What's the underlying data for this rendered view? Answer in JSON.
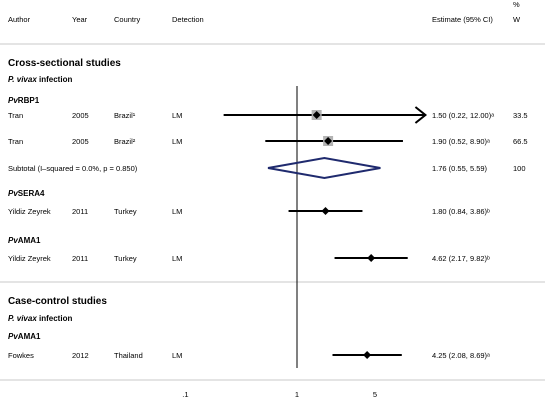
{
  "header": {
    "author": "Author",
    "year": "Year",
    "country": "Country",
    "detection": "Detection",
    "estimate": "Estimate (95% CI)",
    "weight_pct": "%",
    "weight": "W"
  },
  "sections": [
    {
      "title": "Cross-sectional studies",
      "infection_species": "P. vivax",
      "infection_word": " infection"
    },
    {
      "title": "Case-control studies",
      "infection_species": "P. vivax",
      "infection_word": " infection"
    }
  ],
  "chart_data": {
    "type": "forest",
    "xscale": "log",
    "xlim": [
      0.1,
      12
    ],
    "ref_line": 1,
    "ticks": [
      {
        "value": 0.1,
        "label": ".1"
      },
      {
        "value": 1,
        "label": "1"
      },
      {
        "value": 5,
        "label": "5"
      }
    ],
    "rows": [
      {
        "kind": "group",
        "label": "RBP1",
        "prefix": "Pv"
      },
      {
        "kind": "study",
        "author": "Tran",
        "year": "2005",
        "country": "Brazil¹",
        "detection": "LM",
        "est": 1.5,
        "lo": 0.22,
        "hi": 12.0,
        "arrow": true,
        "box": true,
        "estimate_text": "1.50 (0.22, 12.00)ᵃ",
        "weight": "33.5"
      },
      {
        "kind": "study",
        "author": "Tran",
        "year": "2005",
        "country": "Brazil²",
        "detection": "LM",
        "est": 1.9,
        "lo": 0.52,
        "hi": 8.9,
        "arrow": false,
        "box": true,
        "estimate_text": "1.90 (0.52, 8.90)ᵃ",
        "weight": "66.5"
      },
      {
        "kind": "subtotal",
        "label": "Subtotal  (I–squared = 0.0%, p = 0.850)",
        "est": 1.76,
        "lo": 0.55,
        "hi": 5.59,
        "estimate_text": "1.76 (0.55, 5.59)",
        "weight": "100"
      },
      {
        "kind": "group",
        "label": "SERA4",
        "prefix": "Pv"
      },
      {
        "kind": "study",
        "author": "Yildiz Zeyrek",
        "year": "2011",
        "country": "Turkey",
        "detection": "LM",
        "est": 1.8,
        "lo": 0.84,
        "hi": 3.86,
        "arrow": false,
        "box": false,
        "estimate_text": "1.80 (0.84, 3.86)ᵇ",
        "weight": ""
      },
      {
        "kind": "group",
        "label": "AMA1",
        "prefix": "Pv"
      },
      {
        "kind": "study",
        "author": "Yildiz Zeyrek",
        "year": "2011",
        "country": "Turkey",
        "detection": "LM",
        "est": 4.62,
        "lo": 2.17,
        "hi": 9.82,
        "arrow": false,
        "box": false,
        "estimate_text": "4.62 (2.17, 9.82)ᵇ",
        "weight": ""
      },
      {
        "kind": "group",
        "label": "AMA1",
        "prefix": "Pv"
      },
      {
        "kind": "study",
        "author": "Fowkes",
        "year": "2012",
        "country": "Thailand",
        "detection": "LM",
        "est": 4.25,
        "lo": 2.08,
        "hi": 8.69,
        "arrow": false,
        "box": false,
        "estimate_text": "4.25 (2.08, 8.69)ᵃ",
        "weight": ""
      }
    ]
  },
  "colors": {
    "diamond": "#1f2a6e",
    "box": "#b3b3b3",
    "rule": "#c8c8c8",
    "text": "#000000"
  }
}
